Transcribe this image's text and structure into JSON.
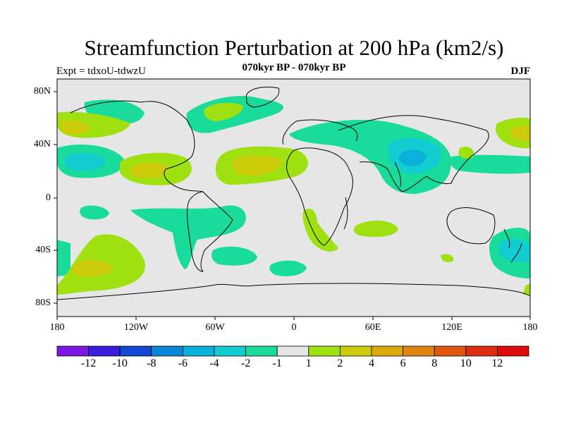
{
  "header": {
    "title": "Streamfunction Perturbation at 200 hPa (km2/s)",
    "subtitle": "070kyr BP - 070kyr BP",
    "left_label": "Expt = tdxoU-tdwzU",
    "right_label": "DJF"
  },
  "axes": {
    "lat_labels": [
      "80N",
      "40N",
      "0",
      "40S",
      "80S"
    ],
    "lon_labels": [
      "180",
      "120W",
      "60W",
      "0",
      "60E",
      "120E",
      "180"
    ]
  },
  "colorbar": {
    "labels": [
      "-12",
      "-10",
      "-8",
      "-6",
      "-4",
      "-2",
      "-1",
      "1",
      "2",
      "4",
      "6",
      "8",
      "10",
      "12"
    ],
    "colors": [
      "#7a17e0",
      "#3a1cdc",
      "#1448d2",
      "#0a86d6",
      "#0ab0da",
      "#11ccd0",
      "#19dc9c",
      "#e6e6e6",
      "#9ee010",
      "#cccc0a",
      "#dcaa0a",
      "#df8410",
      "#dc5810",
      "#dc2e12",
      "#dc0a0a"
    ]
  },
  "map": {
    "background_color": "#e6e6e6"
  }
}
